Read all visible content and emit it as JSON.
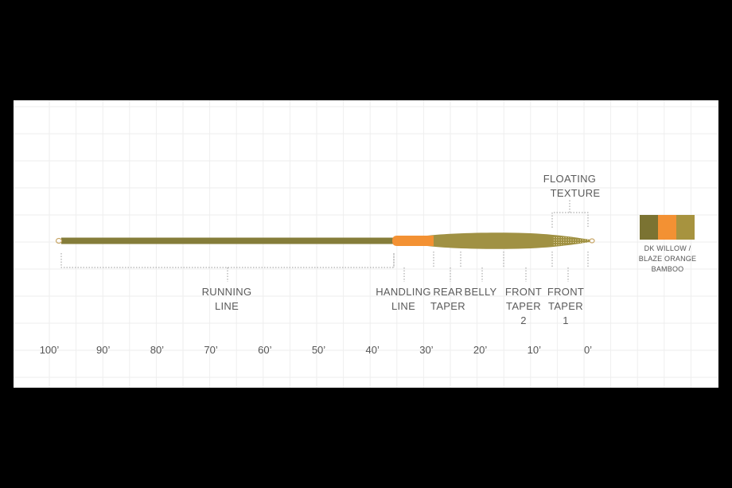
{
  "axis": {
    "ticks": [
      "100’",
      "90’",
      "80’",
      "70’",
      "60’",
      "50’",
      "40’",
      "30’",
      "20’",
      "10’",
      "0’"
    ]
  },
  "sections": {
    "running_line": [
      "RUNNING",
      "LINE"
    ],
    "handling_line": [
      "HANDLING",
      "LINE"
    ],
    "rear_taper": [
      "REAR",
      "TAPER"
    ],
    "belly": [
      "BELLY"
    ],
    "front_taper_2": [
      "FRONT",
      "TAPER",
      "2"
    ],
    "front_taper_1": [
      "FRONT",
      "TAPER",
      "1"
    ],
    "floating_texture": [
      "FLOATING",
      "TEXTURE"
    ]
  },
  "swatch": {
    "colors": [
      "#7b7332",
      "#f39133",
      "#a7933f"
    ],
    "labels": [
      "DK WILLOW /",
      "BLAZE ORANGE",
      "BAMBOO"
    ]
  },
  "line_colors": {
    "running": "#857d3a",
    "handling": "#f39133",
    "head": "#a09143"
  }
}
